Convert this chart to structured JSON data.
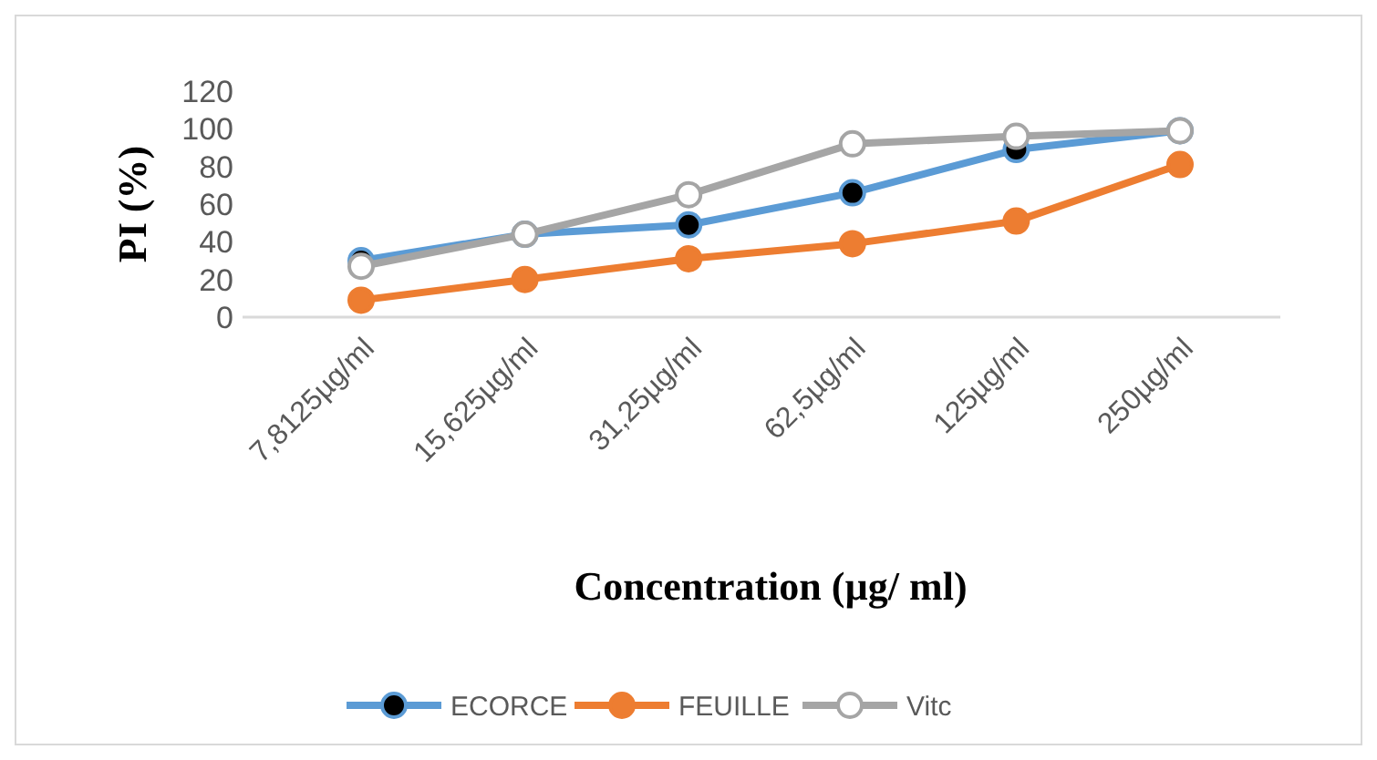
{
  "chart_data": {
    "type": "line",
    "xlabel": "Concentration (µg/ ml)",
    "ylabel": "PI (%)",
    "categories": [
      "7,8125µg/ml",
      "15,625µg/ml",
      "31,25µg/ml",
      "62,5µg/ml",
      "125µg/ml",
      "250µg/ml"
    ],
    "series": [
      {
        "name": "ECORCE",
        "color": "#5b9bd5",
        "values": [
          30,
          44,
          49,
          66,
          89,
          99
        ]
      },
      {
        "name": "FEUILLE",
        "color": "#ed7d31",
        "values": [
          9,
          20,
          31,
          39,
          51,
          81
        ]
      },
      {
        "name": "Vitc",
        "color": "#a5a5a5",
        "values": [
          27,
          44,
          65,
          92,
          96,
          99
        ]
      }
    ],
    "ylim": [
      0,
      120
    ],
    "yticks": [
      0,
      20,
      40,
      60,
      80,
      100,
      120
    ],
    "grid": false,
    "legend": "bottom",
    "marker": "circle",
    "line_style": "solid"
  }
}
